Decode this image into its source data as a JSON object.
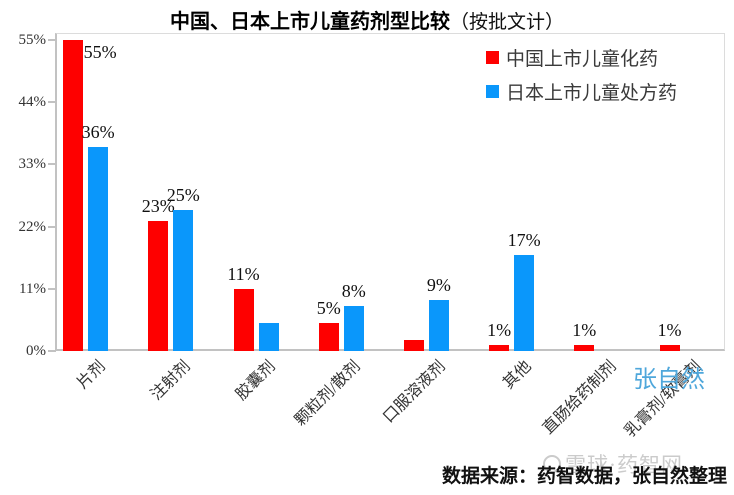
{
  "title": {
    "main": "中国、日本上市儿童药剂型比较",
    "sub": "（按批文计）"
  },
  "legend": [
    {
      "label": "中国上市儿童化药",
      "color": "#fe0000"
    },
    {
      "label": "日本上市儿童处方药",
      "color": "#0a97fb"
    }
  ],
  "footer": {
    "source": "数据来源：药智数据，张自然整理"
  },
  "watermarks": {
    "author": "张自然",
    "site": "雪球·药智网"
  },
  "chart_data": {
    "type": "bar",
    "title": "中国、日本上市儿童药剂型比较（按批文计）",
    "categories": [
      "片剂",
      "注射剂",
      "胶囊剂",
      "颗粒剂/散剂",
      "口服溶液剂",
      "其他",
      "直肠给药制剂",
      "乳膏剂/软膏剂"
    ],
    "series": [
      {
        "name": "中国上市儿童化药",
        "color": "#fe0000",
        "values": [
          55,
          23,
          11,
          5,
          2,
          1,
          1,
          1
        ],
        "labels": [
          "55%",
          "23%",
          "11%",
          "5%",
          "",
          "1%",
          "1%",
          "1%"
        ]
      },
      {
        "name": "日本上市儿童处方药",
        "color": "#0a97fb",
        "values": [
          36,
          25,
          5,
          8,
          9,
          17,
          0,
          0
        ],
        "labels": [
          "36%",
          "25%",
          "",
          "8%",
          "9%",
          "17%",
          "",
          ""
        ]
      }
    ],
    "y_axis": {
      "ticks": [
        "0%",
        "11%",
        "22%",
        "33%",
        "44%",
        "55%"
      ],
      "tick_values": [
        0,
        11,
        22,
        33,
        44,
        55
      ],
      "max": 55
    },
    "grid": false,
    "legend_position": "top-right-inside",
    "data_label_note": "labels shown above bars; unlabeled bars: 胶囊剂-日本≈5%, 口服溶液剂-中国≈2%"
  }
}
